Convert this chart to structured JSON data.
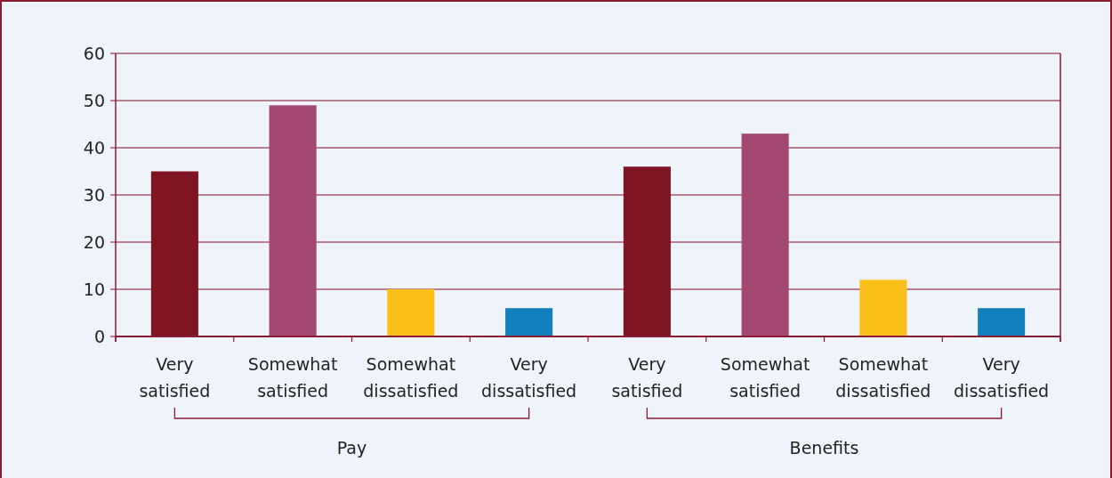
{
  "chart_data": {
    "type": "bar",
    "categories": [
      "Very satisfied",
      "Somewhat satisfied",
      "Somewhat dissatisfied",
      "Very dissatisfied",
      "Very satisfied",
      "Somewhat satisfied",
      "Somewhat dissatisfied",
      "Very dissatisfied"
    ],
    "values": [
      35,
      49,
      10,
      6,
      36,
      43,
      12,
      6
    ],
    "colors": [
      "#7f1423",
      "#a24872",
      "#fbbf1a",
      "#1380bb",
      "#7f1423",
      "#a24872",
      "#fbbf1a",
      "#1380bb"
    ],
    "ylim": [
      0,
      60
    ],
    "yticks": [
      0,
      10,
      20,
      30,
      40,
      50,
      60
    ],
    "grid": "y",
    "annotations": [
      "Pay",
      "Benefits"
    ]
  }
}
